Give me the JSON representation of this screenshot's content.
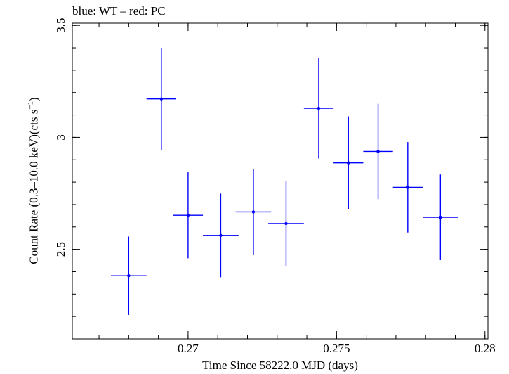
{
  "chart_data": {
    "type": "scatter",
    "title": "blue: WT – red: PC",
    "xlabel": "Time Since 58222.0 MJD (days)",
    "ylabel_main": "Count Rate (0.3–10.0 keV)(cts s",
    "ylabel_sup": "−1",
    "ylabel_end": ")",
    "xlim": [
      0.2661,
      0.2801
    ],
    "ylim": [
      2.1,
      3.51
    ],
    "xticks": [
      0.27,
      0.275,
      0.28
    ],
    "xtick_labels": [
      "0.27",
      "0.275",
      "0.28"
    ],
    "xminor_step": 0.001,
    "yticks": [
      2.5,
      3.0,
      3.5
    ],
    "ytick_labels": [
      "2.5",
      "3",
      "3.5"
    ],
    "yminor_step": 0.1,
    "grid": false,
    "series": [
      {
        "color": "#0000ff",
        "points": [
          {
            "x": 0.268,
            "xerr": 0.0006,
            "y": 2.382,
            "yerr": 0.175
          },
          {
            "x": 0.2691,
            "xerr": 0.0005,
            "y": 3.172,
            "yerr": 0.228
          },
          {
            "x": 0.27,
            "xerr": 0.0005,
            "y": 2.652,
            "yerr": 0.192
          },
          {
            "x": 0.2711,
            "xerr": 0.0006,
            "y": 2.562,
            "yerr": 0.187
          },
          {
            "x": 0.2722,
            "xerr": 0.0006,
            "y": 2.667,
            "yerr": 0.193
          },
          {
            "x": 0.2733,
            "xerr": 0.0006,
            "y": 2.615,
            "yerr": 0.19
          },
          {
            "x": 0.2744,
            "xerr": 0.0005,
            "y": 3.13,
            "yerr": 0.225
          },
          {
            "x": 0.2754,
            "xerr": 0.0005,
            "y": 2.886,
            "yerr": 0.208
          },
          {
            "x": 0.2764,
            "xerr": 0.0005,
            "y": 2.937,
            "yerr": 0.213
          },
          {
            "x": 0.2774,
            "xerr": 0.0005,
            "y": 2.777,
            "yerr": 0.202
          },
          {
            "x": 0.2785,
            "xerr": 0.0006,
            "y": 2.643,
            "yerr": 0.191
          }
        ]
      }
    ]
  }
}
